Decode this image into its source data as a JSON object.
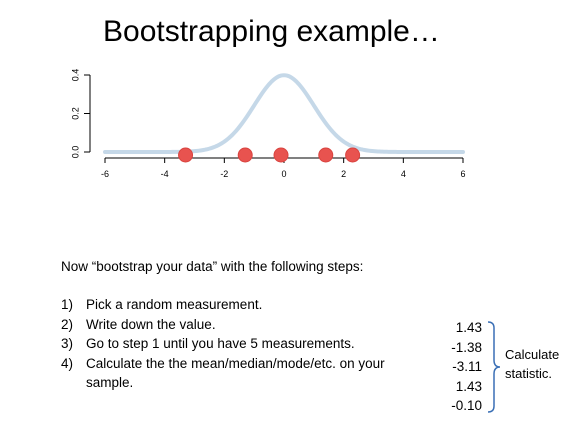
{
  "slide": {
    "title": "Bootstrapping example…"
  },
  "chart_data": {
    "type": "line",
    "description_of_marks": "normal density curve with sample points on baseline",
    "x_ticks": [
      -6,
      -4,
      -2,
      0,
      2,
      4,
      6
    ],
    "x_tick_labels": [
      "-6",
      "-4",
      "-2",
      "0",
      "2",
      "4",
      "6"
    ],
    "y_ticks": [
      0.0,
      0.2,
      0.4
    ],
    "y_tick_labels": [
      "0.0",
      "0.2",
      "0.4"
    ],
    "xlim": [
      -6,
      6
    ],
    "ylim": [
      0,
      0.4
    ],
    "curve": {
      "mean": 0,
      "sd": 1,
      "color": "#c5d8e8"
    },
    "points": [
      -3.3,
      -1.3,
      -0.1,
      1.4,
      2.3
    ],
    "point_color": "#e8534f",
    "title": "",
    "xlabel": "",
    "ylabel": ""
  },
  "intro": "Now “bootstrap your data” with the following steps:",
  "steps": [
    {
      "num": "1)",
      "text": "Pick a random measurement."
    },
    {
      "num": "2)",
      "text": "Write down the value."
    },
    {
      "num": "3)",
      "text": "Go to step 1 until you have 5 measurements."
    },
    {
      "num": "4)",
      "text": "Calculate the the mean/median/mode/etc. on your"
    },
    {
      "num": "",
      "text": "sample."
    }
  ],
  "values": [
    "1.43",
    "-1.38",
    "-3.11",
    "1.43",
    "-0.10"
  ],
  "calc_label": "Calculate statistic."
}
